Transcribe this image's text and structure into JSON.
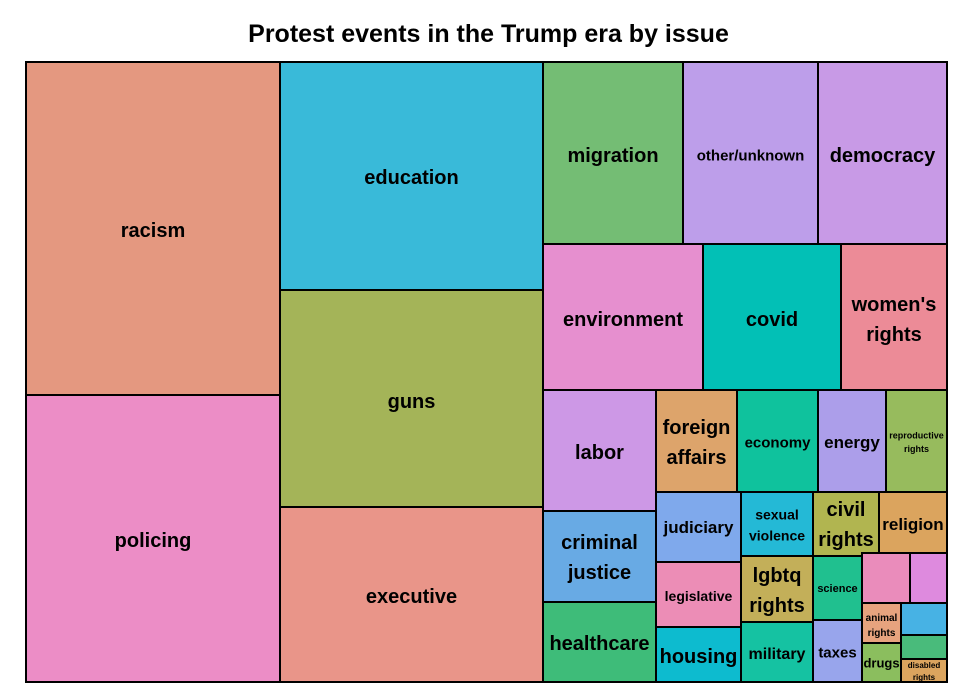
{
  "chart_data": {
    "type": "treemap",
    "title": "Protest events in the Trump era by issue",
    "tiles": [
      {
        "label": "racism",
        "color": "#E49880"
      },
      {
        "label": "policing",
        "color": "#EC8DC6"
      },
      {
        "label": "education",
        "color": "#39BAD9"
      },
      {
        "label": "guns",
        "color": "#A4B458"
      },
      {
        "label": "executive",
        "color": "#E99589"
      },
      {
        "label": "migration",
        "color": "#74BD74"
      },
      {
        "label": "other/unknown",
        "color": "#BD9EEA"
      },
      {
        "label": "democracy",
        "color": "#C89AE6"
      },
      {
        "label": "environment",
        "color": "#E68FCF"
      },
      {
        "label": "covid",
        "color": "#02C0B6"
      },
      {
        "label": "women's rights",
        "color": "#EC8B97"
      },
      {
        "label": "labor",
        "color": "#CD98E6"
      },
      {
        "label": "foreign affairs",
        "color": "#DDA46B"
      },
      {
        "label": "economy",
        "color": "#0FC29D"
      },
      {
        "label": "energy",
        "color": "#AC9EEA"
      },
      {
        "label": "reproductive rights",
        "color": "#97BB5D"
      },
      {
        "label": "criminal justice",
        "color": "#68AAE4"
      },
      {
        "label": "judiciary",
        "color": "#7FA9EC"
      },
      {
        "label": "sexual violence",
        "color": "#24B9D6"
      },
      {
        "label": "civil rights",
        "color": "#B1B550"
      },
      {
        "label": "religion",
        "color": "#DBA45E"
      },
      {
        "label": "legislative",
        "color": "#EC8DB6"
      },
      {
        "label": "lgbtq rights",
        "color": "#C3AF59"
      },
      {
        "label": "science",
        "color": "#20C08F"
      },
      {
        "label": "",
        "color": "#EA8CBB"
      },
      {
        "label": "",
        "color": "#DE8ADE"
      },
      {
        "label": "healthcare",
        "color": "#3EBC79"
      },
      {
        "label": "housing",
        "color": "#0DBBCF"
      },
      {
        "label": "military",
        "color": "#15C2A2"
      },
      {
        "label": "taxes",
        "color": "#98A5EC"
      },
      {
        "label": "animal rights",
        "color": "#E7A37E"
      },
      {
        "label": "",
        "color": "#47B2E4"
      },
      {
        "label": "drugs",
        "color": "#8BBE5E"
      },
      {
        "label": "",
        "color": "#49BB7B"
      },
      {
        "label": "disabled rights",
        "color": "#DBA45E"
      }
    ]
  }
}
